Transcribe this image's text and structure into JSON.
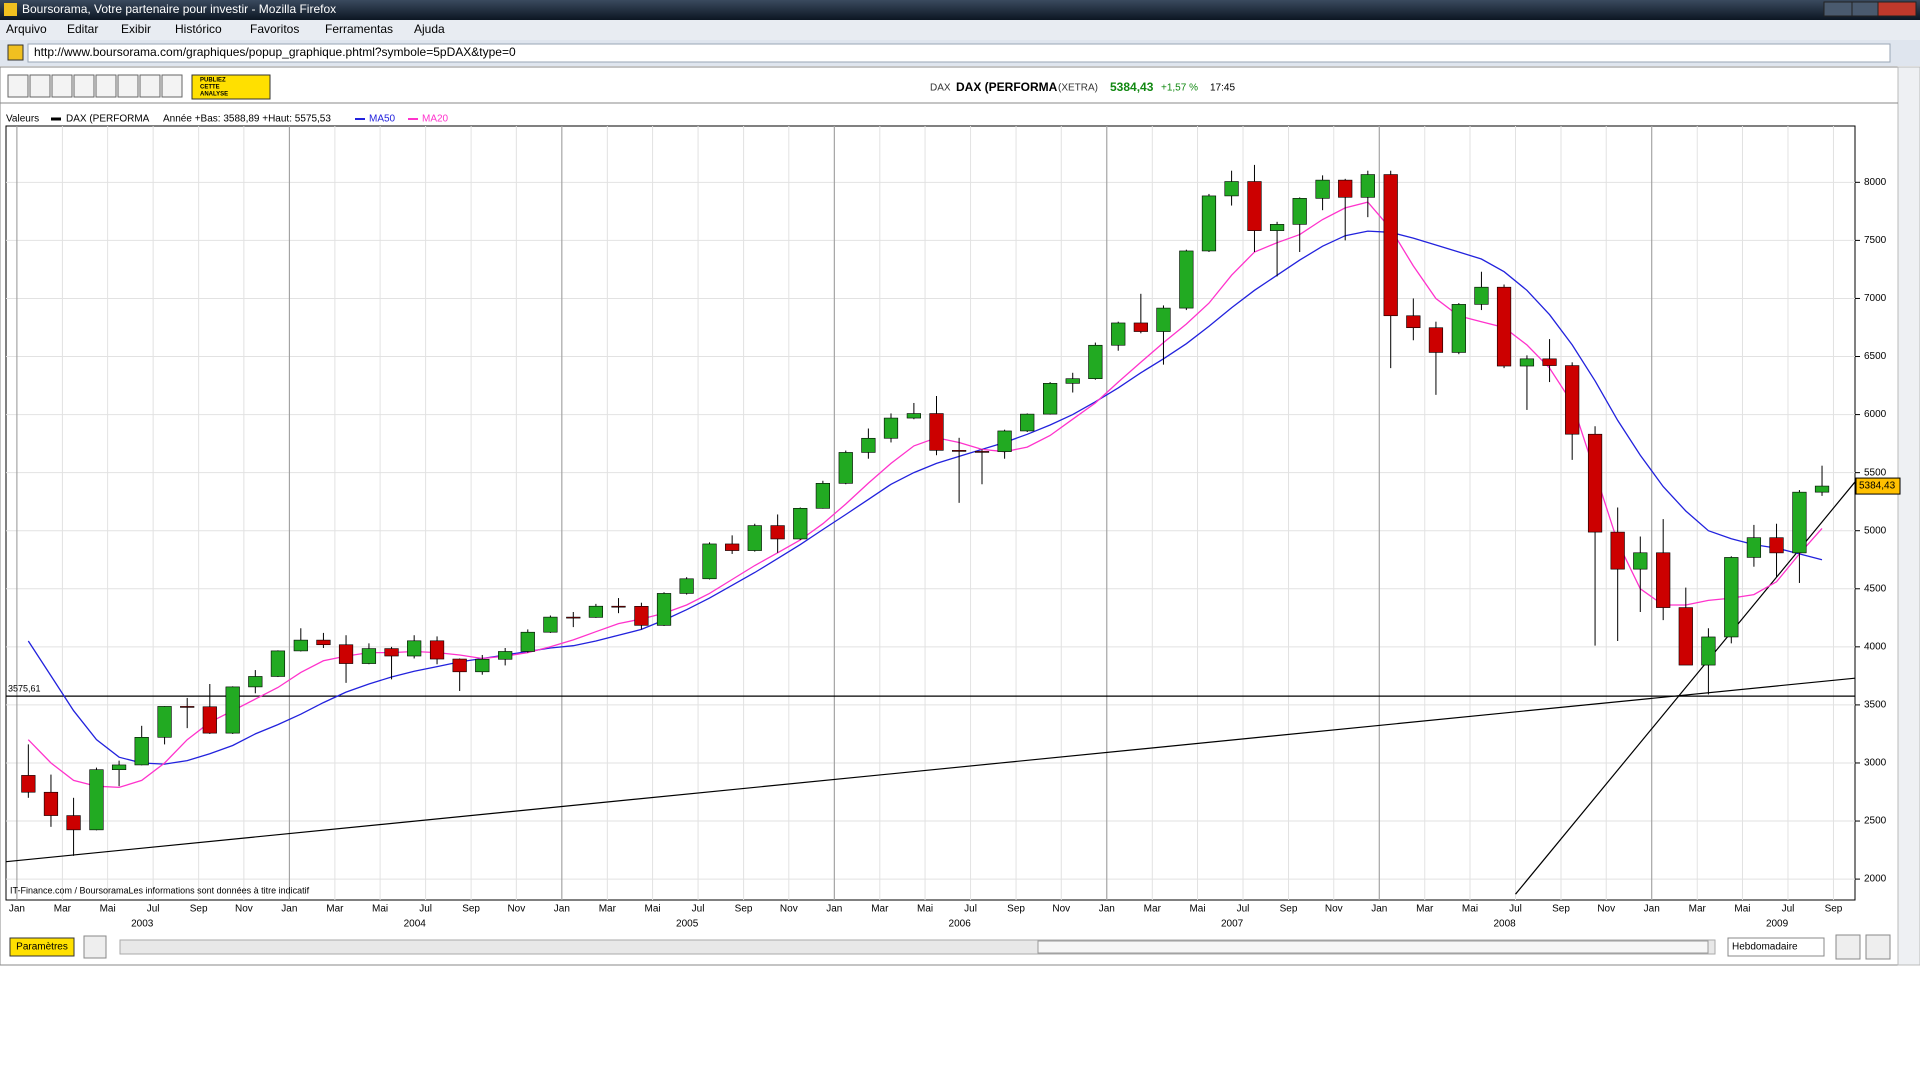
{
  "browser": {
    "title": "Boursorama, Votre partenaire pour investir - Mozilla Firefox",
    "menu": [
      "Arquivo",
      "Editar",
      "Exibir",
      "Histórico",
      "Favoritos",
      "Ferramentas",
      "Ajuda"
    ],
    "url": "http://www.boursorama.com/graphiques/popup_graphique.phtml?symbole=5pDAX&type=0"
  },
  "toolbar": {
    "publish": [
      "PUBLIEZ",
      "CETTE",
      "ANALYSE"
    ]
  },
  "header": {
    "symbol": "DAX",
    "market": "(XETRA)",
    "change": "+1,57 %",
    "time": "17:45"
  },
  "legend": {
    "label": "Valeurs",
    "range": "Année +Bas: 3588,89 +Haut: 5575,53"
  },
  "chart_data": {
    "type": "candlestick",
    "name": "DAX (PERFORMA",
    "up_color": "#22aa22",
    "down_color": "#cc0000",
    "x": [
      2003.042,
      2003.125,
      2003.208,
      2003.292,
      2003.375,
      2003.458,
      2003.542,
      2003.625,
      2003.708,
      2003.792,
      2003.875,
      2003.958,
      2004.042,
      2004.125,
      2004.208,
      2004.292,
      2004.375,
      2004.458,
      2004.542,
      2004.625,
      2004.708,
      2004.792,
      2004.875,
      2004.958,
      2005.042,
      2005.125,
      2005.208,
      2005.292,
      2005.375,
      2005.458,
      2005.542,
      2005.625,
      2005.708,
      2005.792,
      2005.875,
      2005.958,
      2006.042,
      2006.125,
      2006.208,
      2006.292,
      2006.375,
      2006.458,
      2006.542,
      2006.625,
      2006.708,
      2006.792,
      2006.875,
      2006.958,
      2007.042,
      2007.125,
      2007.208,
      2007.292,
      2007.375,
      2007.458,
      2007.542,
      2007.625,
      2007.708,
      2007.792,
      2007.875,
      2007.958,
      2008.042,
      2008.125,
      2008.208,
      2008.292,
      2008.375,
      2008.458,
      2008.542,
      2008.625,
      2008.708,
      2008.792,
      2008.875,
      2008.958,
      2009.042,
      2009.125,
      2009.208,
      2009.292,
      2009.375,
      2009.458,
      2009.542,
      2009.625
    ],
    "candles": [
      [
        2893,
        3160,
        2700,
        2748
      ],
      [
        2748,
        2900,
        2450,
        2547
      ],
      [
        2547,
        2700,
        2200,
        2424
      ],
      [
        2424,
        2960,
        2420,
        2942
      ],
      [
        2942,
        3020,
        2800,
        2983
      ],
      [
        2983,
        3320,
        2980,
        3221
      ],
      [
        3221,
        3490,
        3160,
        3487
      ],
      [
        3487,
        3560,
        3300,
        3484
      ],
      [
        3484,
        3680,
        3250,
        3257
      ],
      [
        3257,
        3660,
        3250,
        3655
      ],
      [
        3655,
        3800,
        3600,
        3745
      ],
      [
        3745,
        3970,
        3740,
        3965
      ],
      [
        3965,
        4160,
        3960,
        4058
      ],
      [
        4058,
        4120,
        3990,
        4018
      ],
      [
        4018,
        4100,
        3690,
        3856
      ],
      [
        3856,
        4030,
        3850,
        3985
      ],
      [
        3985,
        4000,
        3720,
        3921
      ],
      [
        3921,
        4100,
        3900,
        4052
      ],
      [
        4052,
        4090,
        3850,
        3895
      ],
      [
        3895,
        3900,
        3620,
        3785
      ],
      [
        3785,
        3930,
        3760,
        3893
      ],
      [
        3893,
        3990,
        3840,
        3960
      ],
      [
        3960,
        4150,
        3950,
        4126
      ],
      [
        4126,
        4270,
        4120,
        4256
      ],
      [
        4256,
        4300,
        4170,
        4254
      ],
      [
        4254,
        4370,
        4250,
        4350
      ],
      [
        4350,
        4420,
        4290,
        4349
      ],
      [
        4349,
        4380,
        4150,
        4185
      ],
      [
        4185,
        4470,
        4180,
        4460
      ],
      [
        4460,
        4600,
        4450,
        4586
      ],
      [
        4586,
        4900,
        4580,
        4886
      ],
      [
        4886,
        4960,
        4800,
        4829
      ],
      [
        4829,
        5060,
        4820,
        5044
      ],
      [
        5044,
        5140,
        4810,
        4929
      ],
      [
        4929,
        5200,
        4920,
        5193
      ],
      [
        5193,
        5430,
        5190,
        5408
      ],
      [
        5408,
        5690,
        5400,
        5674
      ],
      [
        5674,
        5880,
        5620,
        5796
      ],
      [
        5796,
        6010,
        5760,
        5970
      ],
      [
        5970,
        6100,
        5960,
        6009
      ],
      [
        6009,
        6160,
        5650,
        5692
      ],
      [
        5692,
        5800,
        5240,
        5683
      ],
      [
        5683,
        5700,
        5400,
        5681
      ],
      [
        5681,
        5870,
        5620,
        5859
      ],
      [
        5859,
        6010,
        5850,
        6004
      ],
      [
        6004,
        6280,
        6000,
        6269
      ],
      [
        6269,
        6360,
        6190,
        6309
      ],
      [
        6309,
        6620,
        6300,
        6597
      ],
      [
        6597,
        6800,
        6550,
        6789
      ],
      [
        6789,
        7040,
        6700,
        6715
      ],
      [
        6715,
        6940,
        6430,
        6917
      ],
      [
        6917,
        7420,
        6900,
        7409
      ],
      [
        7409,
        7900,
        7400,
        7883
      ],
      [
        7883,
        8100,
        7800,
        8007
      ],
      [
        8007,
        8150,
        7400,
        7584
      ],
      [
        7584,
        7660,
        7190,
        7638
      ],
      [
        7638,
        7870,
        7400,
        7862
      ],
      [
        7862,
        8060,
        7760,
        8019
      ],
      [
        8019,
        8030,
        7500,
        7871
      ],
      [
        7871,
        8100,
        7700,
        8067
      ],
      [
        8067,
        8100,
        6400,
        6851
      ],
      [
        6851,
        7000,
        6640,
        6748
      ],
      [
        6748,
        6800,
        6170,
        6535
      ],
      [
        6535,
        6960,
        6520,
        6949
      ],
      [
        6949,
        7230,
        6900,
        7097
      ],
      [
        7097,
        7120,
        6400,
        6418
      ],
      [
        6418,
        6510,
        6040,
        6480
      ],
      [
        6480,
        6650,
        6280,
        6422
      ],
      [
        6422,
        6450,
        5610,
        5831
      ],
      [
        5831,
        5900,
        4010,
        4988
      ],
      [
        4988,
        5200,
        4050,
        4669
      ],
      [
        4669,
        4950,
        4300,
        4810
      ],
      [
        4810,
        5100,
        4230,
        4338
      ],
      [
        4338,
        4510,
        3850,
        3843
      ],
      [
        3843,
        4160,
        3590,
        4085
      ],
      [
        4085,
        4780,
        4030,
        4770
      ],
      [
        4770,
        5050,
        4690,
        4940
      ],
      [
        4940,
        5060,
        4600,
        4809
      ],
      [
        4809,
        5350,
        4550,
        5332
      ],
      [
        5332,
        5560,
        5300,
        5384.43
      ]
    ],
    "series": [
      {
        "name": "MA50",
        "color": "#2222dd",
        "values": [
          4050,
          3750,
          3450,
          3200,
          3050,
          3000,
          2990,
          3020,
          3080,
          3150,
          3250,
          3330,
          3420,
          3520,
          3610,
          3680,
          3740,
          3790,
          3830,
          3870,
          3900,
          3930,
          3960,
          3990,
          4010,
          4050,
          4100,
          4150,
          4230,
          4320,
          4420,
          4530,
          4640,
          4760,
          4880,
          5010,
          5140,
          5270,
          5400,
          5500,
          5580,
          5640,
          5700,
          5760,
          5830,
          5910,
          6000,
          6110,
          6230,
          6360,
          6480,
          6610,
          6760,
          6920,
          7070,
          7200,
          7330,
          7450,
          7540,
          7580,
          7570,
          7520,
          7460,
          7400,
          7340,
          7230,
          7070,
          6860,
          6600,
          6290,
          5950,
          5650,
          5380,
          5170,
          5000,
          4930,
          4880,
          4850,
          4800,
          4750
        ]
      },
      {
        "name": "MA20",
        "color": "#ff33cc",
        "values": [
          3200,
          3000,
          2850,
          2800,
          2790,
          2850,
          3000,
          3200,
          3350,
          3450,
          3550,
          3650,
          3780,
          3880,
          3920,
          3950,
          3950,
          3960,
          3950,
          3930,
          3900,
          3920,
          3950,
          4000,
          4060,
          4130,
          4200,
          4240,
          4290,
          4360,
          4460,
          4580,
          4700,
          4810,
          4920,
          5060,
          5230,
          5410,
          5580,
          5730,
          5800,
          5760,
          5700,
          5680,
          5720,
          5820,
          5960,
          6100,
          6280,
          6450,
          6620,
          6780,
          6960,
          7200,
          7400,
          7480,
          7550,
          7680,
          7780,
          7830,
          7600,
          7280,
          7000,
          6850,
          6800,
          6750,
          6600,
          6400,
          6100,
          5500,
          4900,
          4500,
          4360,
          4360,
          4400,
          4420,
          4450,
          4560,
          4800,
          5020
        ]
      }
    ],
    "xlim": [
      2002.96,
      2009.746
    ],
    "ylim": [
      1820,
      8485
    ],
    "yticks": [
      2000,
      2500,
      3000,
      3500,
      4000,
      4500,
      5000,
      5500,
      6000,
      6500,
      7000,
      7500,
      8000
    ],
    "xticks": [
      {
        "value": 2003.0,
        "label": "Jan"
      },
      {
        "value": 2003.167,
        "label": "Mar"
      },
      {
        "value": 2003.333,
        "label": "Mai"
      },
      {
        "value": 2003.5,
        "label": "Jul"
      },
      {
        "value": 2003.667,
        "label": "Sep"
      },
      {
        "value": 2003.833,
        "label": "Nov"
      },
      {
        "value": 2004.0,
        "label": "Jan"
      },
      {
        "value": 2004.167,
        "label": "Mar"
      },
      {
        "value": 2004.333,
        "label": "Mai"
      },
      {
        "value": 2004.5,
        "label": "Jul"
      },
      {
        "value": 2004.667,
        "label": "Sep"
      },
      {
        "value": 2004.833,
        "label": "Nov"
      },
      {
        "value": 2005.0,
        "label": "Jan"
      },
      {
        "value": 2005.167,
        "label": "Mar"
      },
      {
        "value": 2005.333,
        "label": "Mai"
      },
      {
        "value": 2005.5,
        "label": "Jul"
      },
      {
        "value": 2005.667,
        "label": "Sep"
      },
      {
        "value": 2005.833,
        "label": "Nov"
      },
      {
        "value": 2006.0,
        "label": "Jan"
      },
      {
        "value": 2006.167,
        "label": "Mar"
      },
      {
        "value": 2006.333,
        "label": "Mai"
      },
      {
        "value": 2006.5,
        "label": "Jul"
      },
      {
        "value": 2006.667,
        "label": "Sep"
      },
      {
        "value": 2006.833,
        "label": "Nov"
      },
      {
        "value": 2007.0,
        "label": "Jan"
      },
      {
        "value": 2007.167,
        "label": "Mar"
      },
      {
        "value": 2007.333,
        "label": "Mai"
      },
      {
        "value": 2007.5,
        "label": "Jul"
      },
      {
        "value": 2007.667,
        "label": "Sep"
      },
      {
        "value": 2007.833,
        "label": "Nov"
      },
      {
        "value": 2008.0,
        "label": "Jan"
      },
      {
        "value": 2008.167,
        "label": "Mar"
      },
      {
        "value": 2008.333,
        "label": "Mai"
      },
      {
        "value": 2008.5,
        "label": "Jul"
      },
      {
        "value": 2008.667,
        "label": "Sep"
      },
      {
        "value": 2008.833,
        "label": "Nov"
      },
      {
        "value": 2009.0,
        "label": "Jan"
      },
      {
        "value": 2009.167,
        "label": "Mar"
      },
      {
        "value": 2009.333,
        "label": "Mai"
      },
      {
        "value": 2009.5,
        "label": "Jul"
      },
      {
        "value": 2009.667,
        "label": "Sep"
      }
    ],
    "year_ticks": [
      2003,
      2004,
      2005,
      2006,
      2007,
      2008,
      2009
    ],
    "hline": {
      "value": 3575.61,
      "label": "3575,61"
    },
    "trendlines": [
      {
        "x": [
          2002.96,
          2009.746
        ],
        "y": [
          2150,
          3730
        ]
      },
      {
        "x": [
          2008.5,
          2009.746
        ],
        "y": [
          1870,
          5420
        ]
      }
    ],
    "last": {
      "value": 5384.43,
      "label": "5384,43"
    },
    "source": "IT-Finance.com / BoursoramaLes informations sont données à titre indicatif"
  },
  "footer": {
    "params": "Paramètres",
    "period": "Hebdomadaire"
  }
}
